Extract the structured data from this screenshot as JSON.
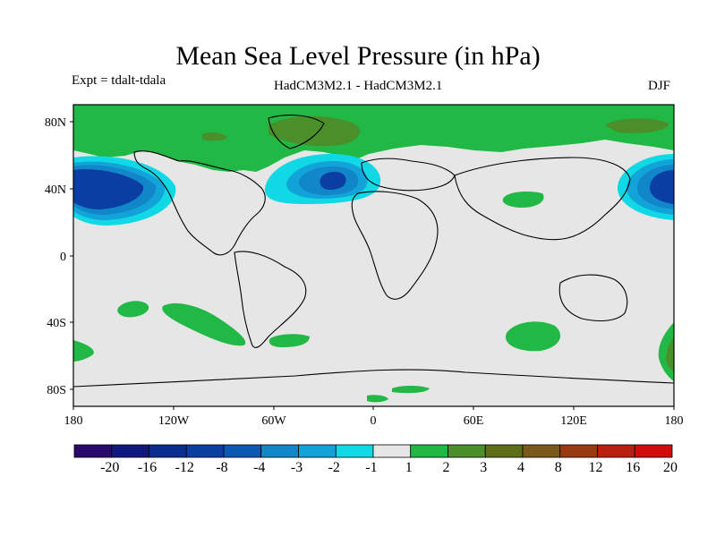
{
  "title": "Mean Sea Level Pressure (in hPa)",
  "expt_label": "Expt = tdalt-tdala",
  "experiment": "HadCM3M2.1 - HadCM3M2.1",
  "season": "DJF",
  "lat_ticks": [
    "80N",
    "40N",
    "0",
    "40S",
    "80S"
  ],
  "lon_ticks": [
    "180",
    "120W",
    "60W",
    "0",
    "60E",
    "120E",
    "180"
  ],
  "colorbar": {
    "labels": [
      "-20",
      "-16",
      "-12",
      "-8",
      "-4",
      "-3",
      "-2",
      "-1",
      "1",
      "2",
      "3",
      "4",
      "8",
      "12",
      "16",
      "20"
    ],
    "colors": [
      "#2a0a6b",
      "#10177f",
      "#0a2e8e",
      "#0a3ea3",
      "#0a58b3",
      "#1186c8",
      "#12a3d8",
      "#10d8e4",
      "#e6e6e6",
      "#22b845",
      "#4a8f2a",
      "#5c6e18",
      "#7a5a1a",
      "#9a3a12",
      "#b81f10",
      "#d00c0c"
    ]
  },
  "colors": {
    "ocean_background": "#e6e6e6",
    "positive_1_2": "#22b845",
    "positive_2_3": "#4a8f2a",
    "positive_3_4": "#5c6e18",
    "negative_1_2": "#10d8e4",
    "negative_2_3": "#12a3d8",
    "negative_3_4": "#1186c8",
    "negative_4_8": "#0a58b3"
  }
}
